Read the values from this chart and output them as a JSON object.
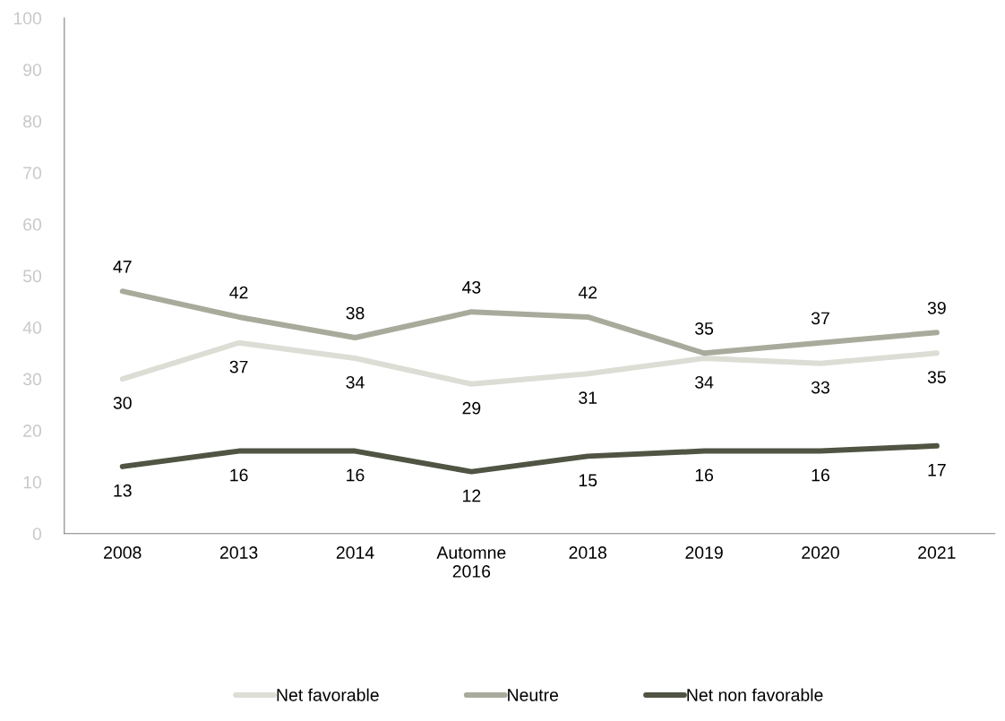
{
  "chart_data": {
    "type": "line",
    "categories": [
      "2008",
      "2013",
      "2014",
      "Automne\n2016",
      "2018",
      "2019",
      "2020",
      "2021"
    ],
    "series": [
      {
        "name": "Net favorable",
        "color": "#dcddd5",
        "values": [
          30,
          37,
          34,
          29,
          31,
          34,
          33,
          35
        ]
      },
      {
        "name": "Neutre",
        "color": "#a8ab9b",
        "values": [
          47,
          42,
          38,
          43,
          42,
          35,
          37,
          39
        ]
      },
      {
        "name": "Net non favorable",
        "color": "#4f5443",
        "values": [
          13,
          16,
          16,
          12,
          15,
          16,
          16,
          17
        ]
      }
    ],
    "ylim": [
      0,
      100
    ],
    "yticks": [
      0,
      10,
      20,
      30,
      40,
      50,
      60,
      70,
      80,
      90,
      100
    ],
    "grid": false,
    "legend": "bottom",
    "marker": "none",
    "line_style": "solid",
    "data_labels": true
  }
}
